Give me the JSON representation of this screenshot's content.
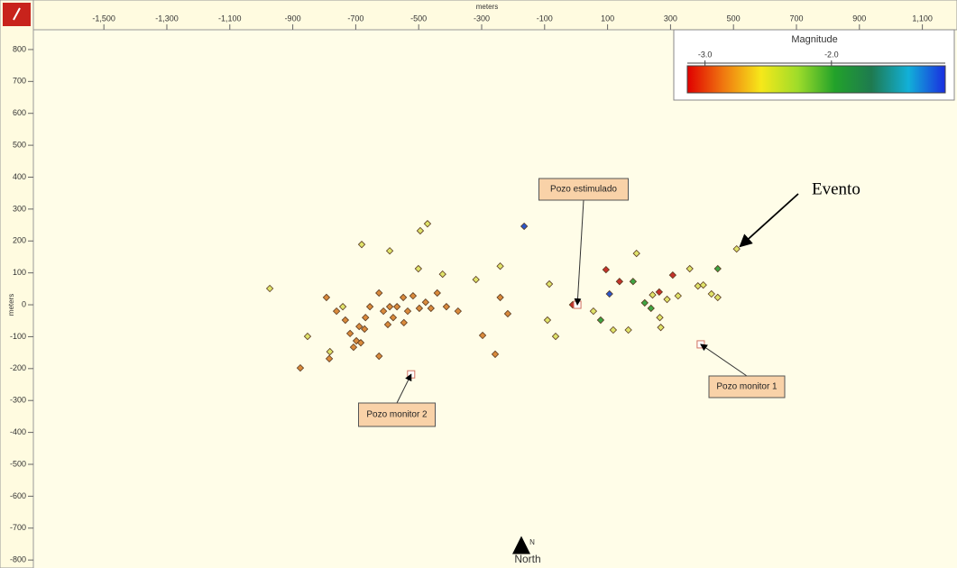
{
  "chart_data": {
    "type": "scatter",
    "x_label": "meters",
    "y_label": "meters",
    "xlim": [
      -1724,
      1210
    ],
    "ylim": [
      -825,
      862
    ],
    "xticks": [
      {
        "value": -1500,
        "label": "-1,500"
      },
      {
        "value": -1300,
        "label": "-1,300"
      },
      {
        "value": -1100,
        "label": "-1,100"
      },
      -900,
      -700,
      -500,
      -300,
      -100,
      100,
      300,
      500,
      700,
      900,
      {
        "value": 1100,
        "label": "1,100"
      }
    ],
    "yticks": [
      800,
      700,
      600,
      500,
      400,
      300,
      200,
      100,
      0,
      -100,
      -200,
      -300,
      -400,
      -500,
      -600,
      -700,
      -800
    ],
    "series": [
      {
        "color": "#dfe36a",
        "x": [
          -973,
          -681,
          -592,
          -495,
          -472,
          -501,
          -424,
          -318,
          -241,
          -85,
          -91,
          -65,
          55,
          118,
          166,
          192,
          243,
          289,
          266,
          269,
          324,
          361,
          387,
          404,
          430,
          450,
          510,
          -853,
          -782,
          -741
        ],
        "values": [
          51,
          189,
          169,
          232,
          254,
          113,
          96,
          79,
          121,
          65,
          -48,
          -99,
          -20,
          -79,
          -79,
          161,
          31,
          17,
          -40,
          -71,
          28,
          113,
          59,
          62,
          34,
          23,
          175,
          -99,
          -147,
          -6
        ]
      },
      {
        "color": "#d98a3c",
        "x": [
          -876,
          -784,
          -793,
          -761,
          -733,
          -718,
          -698,
          -689,
          -669,
          -655,
          -626,
          -612,
          -598,
          -581,
          -569,
          -549,
          -535,
          -518,
          -498,
          -478,
          -461,
          -441,
          -412,
          -375,
          -626,
          -672,
          -707,
          -684,
          -592,
          -547,
          -297,
          -257,
          -217,
          -241
        ],
        "values": [
          -198,
          -169,
          23,
          -20,
          -48,
          -90,
          -113,
          -68,
          -40,
          -6,
          37,
          -20,
          -62,
          -40,
          -6,
          23,
          -20,
          28,
          -11,
          8,
          -11,
          37,
          -6,
          -20,
          -161,
          -76,
          -133,
          -119,
          -6,
          -56,
          -96,
          -155,
          -28,
          23
        ]
      },
      {
        "color": "#c4332b",
        "x": [
          95,
          138,
          307,
          264,
          4,
          -11
        ],
        "values": [
          110,
          73,
          93,
          40,
          0,
          0
        ]
      },
      {
        "color": "#3ea544",
        "x": [
          181,
          238,
          450,
          78,
          218
        ],
        "values": [
          73,
          -11,
          113,
          -48,
          6
        ]
      },
      {
        "color": "#2b56c9",
        "x": [
          -165,
          106
        ],
        "values": [
          246,
          34
        ]
      }
    ],
    "colorbar": {
      "title": "Magnitude",
      "clim": [
        -3.14,
        -1.1
      ],
      "ticks": [
        {
          "value": -3,
          "label": "-3.0"
        },
        {
          "value": -2,
          "label": "-2.0"
        }
      ],
      "colormap": [
        "#e00000",
        "#f07a10",
        "#f6e81a",
        "#9edc2a",
        "#22a22a",
        "#1e7a50",
        "#12b0d8",
        "#1a2de0"
      ]
    },
    "annotations": [
      {
        "text": "Pozo estimulado",
        "x": 4,
        "y": 0
      },
      {
        "text": "Pozo monitor 2",
        "x": -524,
        "y": -218
      },
      {
        "text": "Pozo monitor 1",
        "x": 396,
        "y": -124
      },
      {
        "text": "Evento",
        "x": 510,
        "y": 175
      }
    ],
    "compass": {
      "letter": "N",
      "label": "North"
    }
  }
}
